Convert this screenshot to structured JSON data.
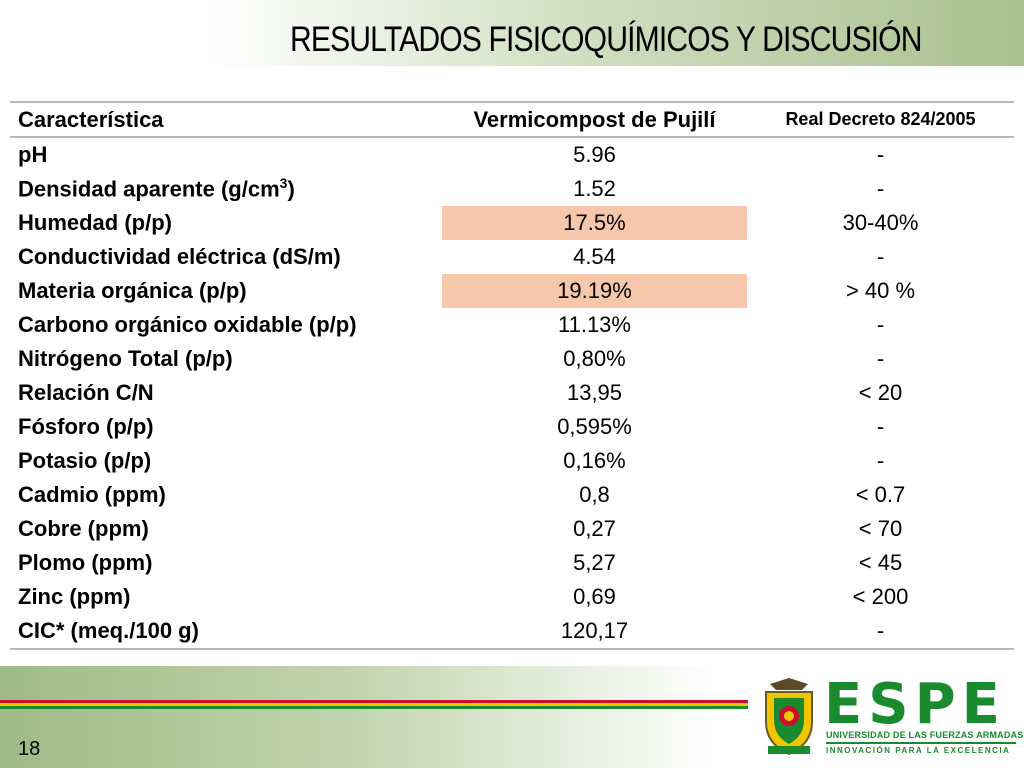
{
  "slide": {
    "title": "RESULTADOS FISICOQUÍMICOS Y DISCUSIÓN",
    "page_number": "18"
  },
  "table": {
    "headers": [
      "Característica",
      "Vermicompost de Pujilí",
      "Real Decreto 824/2005"
    ],
    "highlight_color": "#f6c7ab",
    "rows": [
      {
        "feature": "pH",
        "value": "5.96",
        "reference": "-"
      },
      {
        "feature_pre": "Densidad aparente (g/cm",
        "feature_sup": "3",
        "feature_post": ")",
        "value": "1.52",
        "reference": "-"
      },
      {
        "feature": "Humedad (p/p)",
        "value": "17.5%",
        "reference": "30-40%",
        "highlight": true
      },
      {
        "feature": "Conductividad eléctrica (dS/m)",
        "value": "4.54",
        "reference": "-"
      },
      {
        "feature": "Materia orgánica (p/p)",
        "value": "19.19%",
        "reference": "> 40 %",
        "highlight": true
      },
      {
        "feature": "Carbono orgánico oxidable (p/p)",
        "value": "11.13%",
        "reference": "-"
      },
      {
        "feature": "Nitrógeno Total (p/p)",
        "value": "0,80%",
        "reference": "-"
      },
      {
        "feature": "Relación C/N",
        "value": "13,95",
        "reference": "< 20"
      },
      {
        "feature": "Fósforo (p/p)",
        "value": "0,595%",
        "reference": "-"
      },
      {
        "feature": "Potasio (p/p)",
        "value": "0,16%",
        "reference": "-"
      },
      {
        "feature": "Cadmio (ppm)",
        "value": "0,8",
        "reference": "< 0.7"
      },
      {
        "feature": "Cobre (ppm)",
        "value": "0,27",
        "reference": "< 70"
      },
      {
        "feature": "Plomo (ppm)",
        "value": "5,27",
        "reference": "< 45"
      },
      {
        "feature": "Zinc (ppm)",
        "value": "0,69",
        "reference": "< 200"
      },
      {
        "feature": "CIC* (meq./100 g)",
        "value": "120,17",
        "reference": "-"
      }
    ]
  },
  "logo": {
    "wordmark": "ESPE",
    "university": "UNIVERSIDAD DE LAS FUERZAS ARMADAS",
    "slogan": "INNOVACIÓN PARA LA EXCELENCIA",
    "crest_icon": "university-crest-icon",
    "green": "#1a8a2e",
    "red": "#c8102e",
    "yellow": "#f2c500"
  }
}
